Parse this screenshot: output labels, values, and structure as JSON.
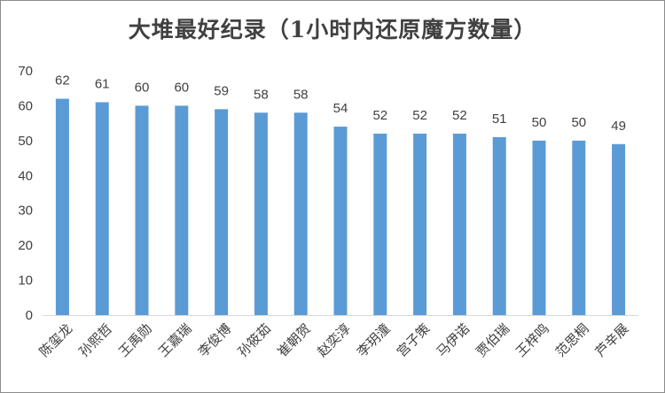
{
  "chart_data": {
    "type": "bar",
    "title": "大堆最好纪录（1小时内还原魔方数量）",
    "xlabel": "",
    "ylabel": "",
    "categories": [
      "陈玺龙",
      "孙熙哲",
      "王禹勋",
      "王嘉瑞",
      "李俊博",
      "孙筱茹",
      "崔朝贺",
      "赵奕淳",
      "李玥潼",
      "宫子策",
      "马伊诺",
      "贾伯瑞",
      "王梓鸣",
      "范思桐",
      "芦辛展"
    ],
    "values": [
      62,
      61,
      60,
      60,
      59,
      58,
      58,
      54,
      52,
      52,
      52,
      51,
      50,
      50,
      49
    ],
    "ylim": [
      0,
      70
    ],
    "yticks": [
      0,
      10,
      20,
      30,
      40,
      50,
      60,
      70
    ],
    "grid": false,
    "legend": "none",
    "data_labels": true,
    "bar_color": "#5B9BD5"
  }
}
